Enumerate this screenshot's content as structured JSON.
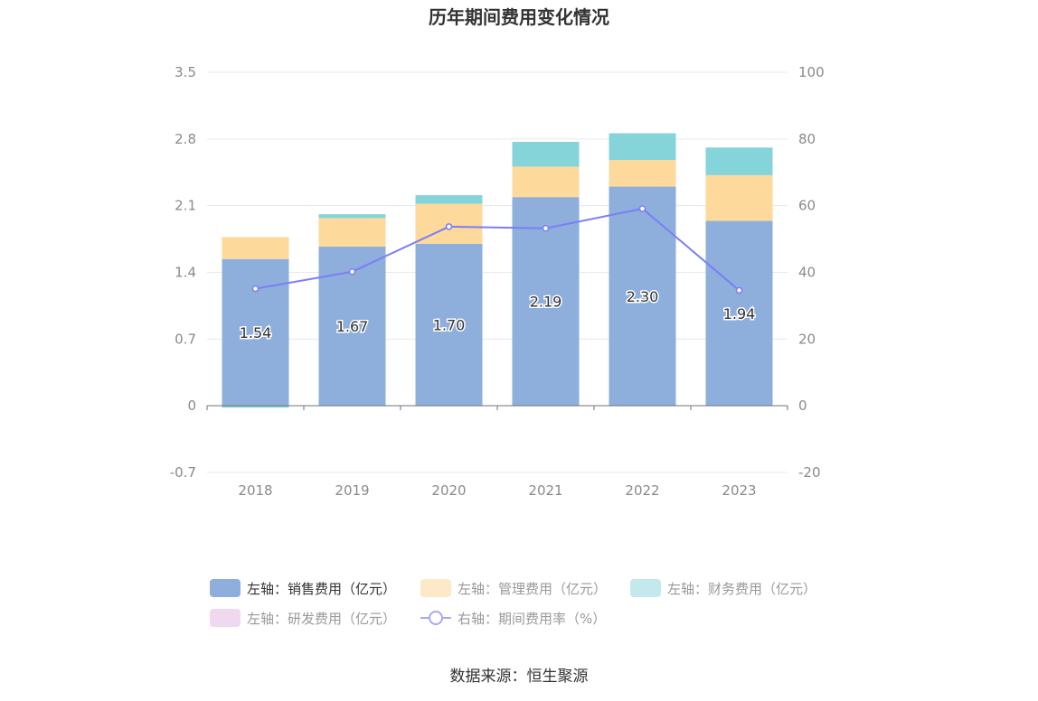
{
  "chart_data": {
    "type": "bar",
    "title": "历年期间费用变化情况",
    "categories": [
      "2018",
      "2019",
      "2020",
      "2021",
      "2022",
      "2023"
    ],
    "series": [
      {
        "name": "左轴：销售费用（亿元）",
        "axis": "left",
        "kind": "bar",
        "color": "#8eaedc",
        "values": [
          1.54,
          1.67,
          1.7,
          2.19,
          2.3,
          1.94
        ],
        "show_labels": true
      },
      {
        "name": "左轴：管理费用（亿元）",
        "axis": "left",
        "kind": "bar",
        "color": "#fdd99b",
        "values": [
          0.23,
          0.3,
          0.42,
          0.32,
          0.28,
          0.48
        ],
        "show_labels": false
      },
      {
        "name": "左轴：财务费用（亿元）",
        "axis": "left",
        "kind": "bar",
        "color": "#85d4d9",
        "values": [
          -0.02,
          0.04,
          0.09,
          0.26,
          0.28,
          0.29
        ],
        "show_labels": false
      },
      {
        "name": "左轴：研发费用（亿元）",
        "axis": "left",
        "kind": "bar",
        "color": "#f0d9ee",
        "values": [
          0,
          0,
          0,
          0,
          0,
          0
        ],
        "show_labels": false
      },
      {
        "name": "右轴：期间费用率（%）",
        "axis": "right",
        "kind": "line",
        "color": "#7b7ef5",
        "values": [
          35.1,
          40.2,
          53.7,
          53.2,
          59.1,
          34.6
        ],
        "show_labels": false
      }
    ],
    "left_axis": {
      "min": -0.7,
      "max": 3.5,
      "ticks": [
        "-0.7",
        "0",
        "0.7",
        "1.4",
        "2.1",
        "2.8",
        "3.5"
      ]
    },
    "right_axis": {
      "min": -20,
      "max": 100,
      "ticks": [
        "-20",
        "0",
        "20",
        "40",
        "60",
        "80",
        "100"
      ]
    },
    "legend_position": "bottom",
    "grid": true
  },
  "source": "数据来源：恒生聚源"
}
